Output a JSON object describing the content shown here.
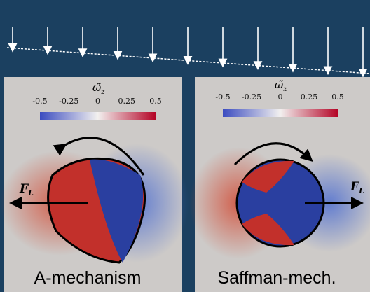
{
  "panels": [
    {
      "colorbar": {
        "label": {
          "symbol": "ω̃",
          "subscript": "z"
        },
        "ticks": [
          -0.5,
          -0.25,
          0,
          0.25,
          0.5
        ]
      },
      "force": {
        "symbol": "F",
        "subscript": "L"
      },
      "caption": "A-mechanism"
    },
    {
      "colorbar": {
        "label": {
          "symbol": "ω̃",
          "subscript": "z"
        },
        "ticks": [
          -0.5,
          -0.25,
          0,
          0.25,
          0.5
        ]
      },
      "force": {
        "symbol": "F",
        "subscript": "L"
      },
      "caption": "Saffman-mech."
    }
  ]
}
